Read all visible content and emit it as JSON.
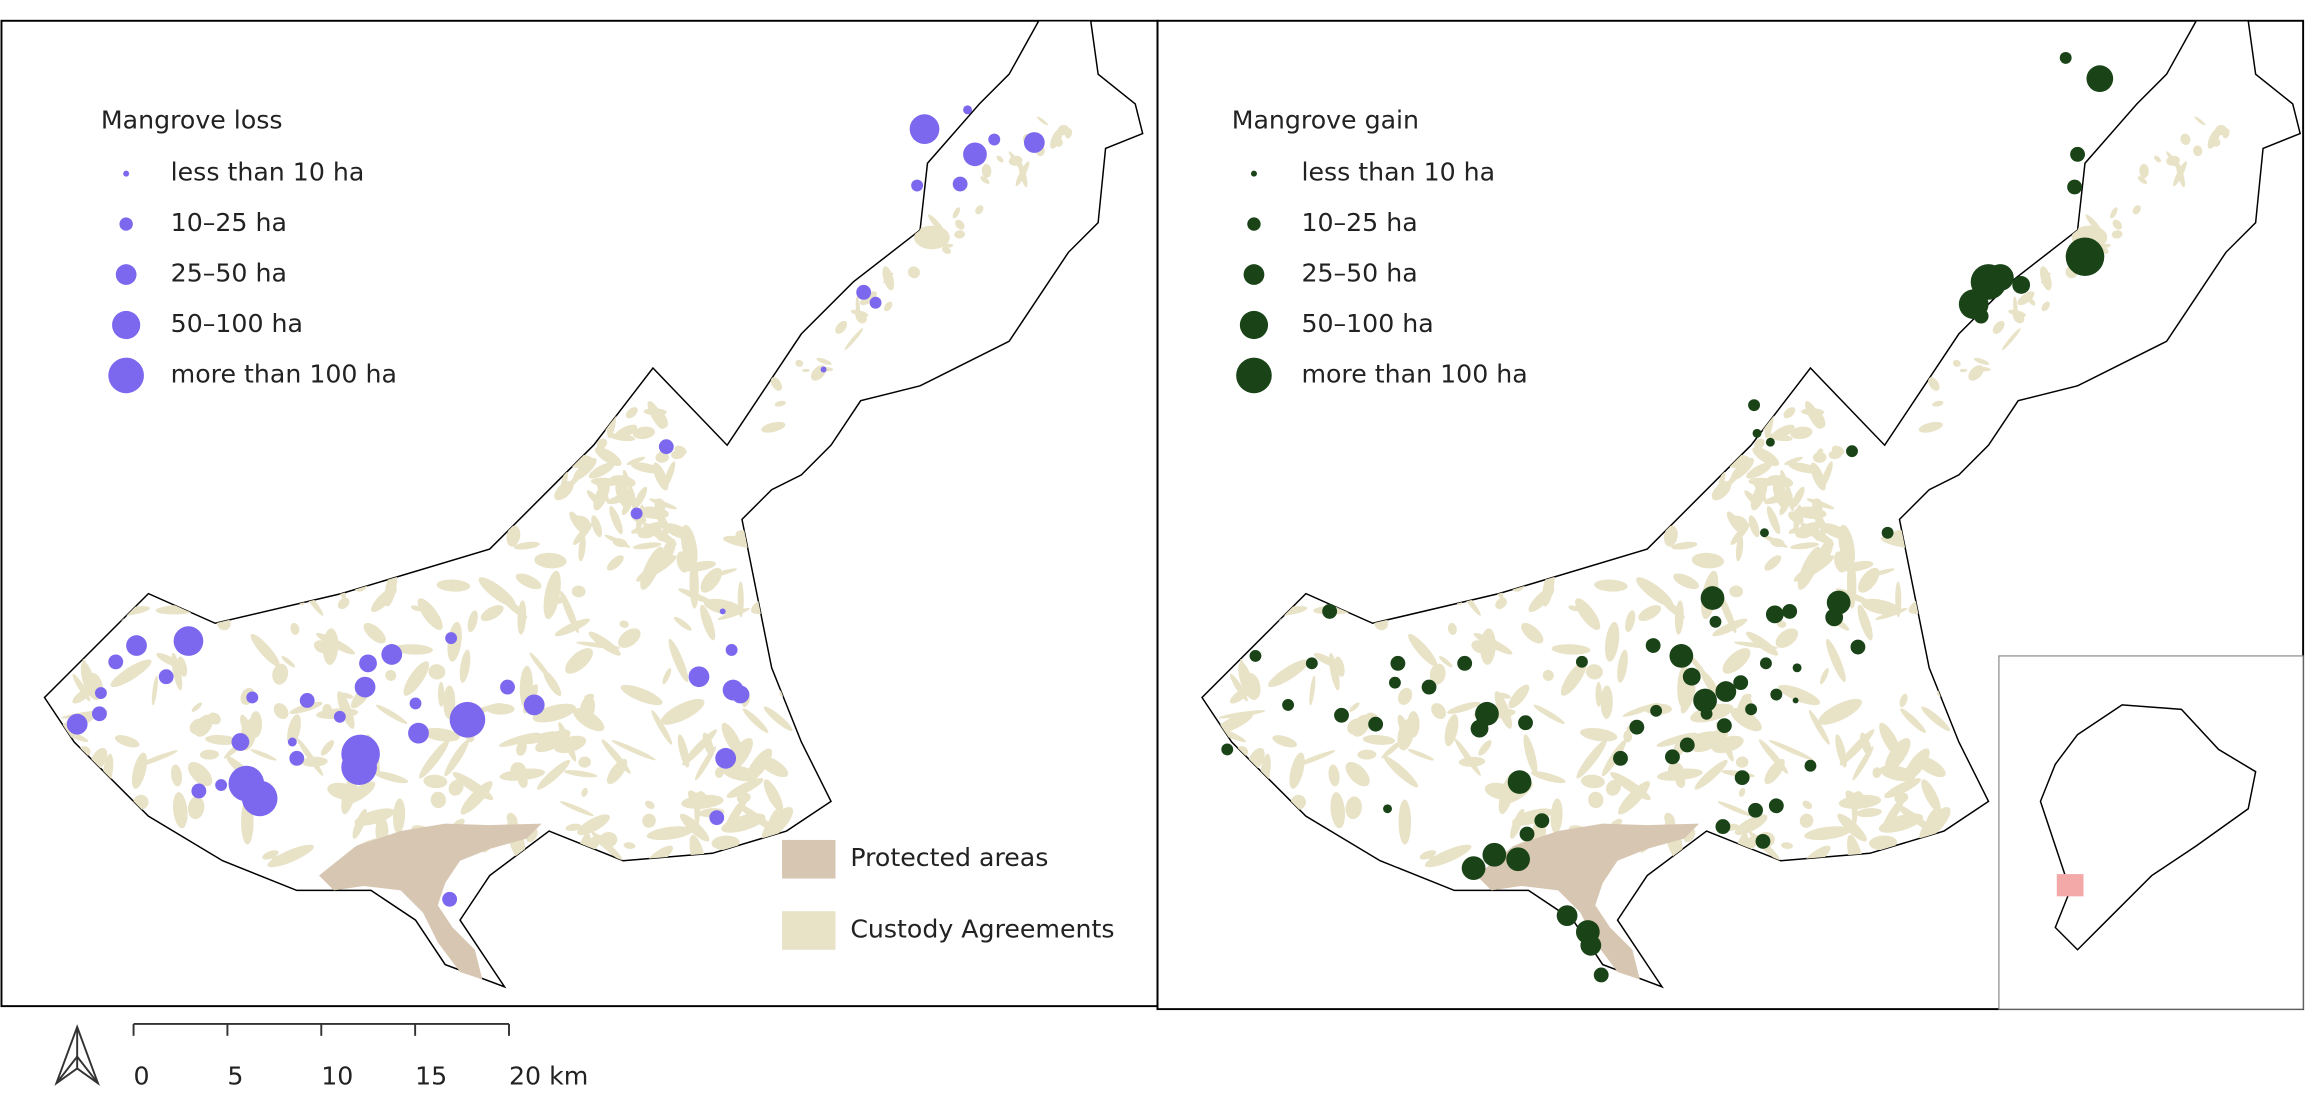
{
  "loss_panel": {
    "legend_title": "Mangrove loss",
    "legend_items": [
      "less than 10 ha",
      "10–25 ha",
      "25–50 ha",
      "50–100 ha",
      "more than 100 ha"
    ]
  },
  "gain_panel": {
    "legend_title": "Mangrove gain",
    "legend_items": [
      "less than 10 ha",
      "10–25 ha",
      "25–50 ha",
      "50–100 ha",
      "more than 100 ha"
    ]
  },
  "area_legend": [
    "Protected areas",
    "Custody Agreements"
  ],
  "scale_bar": [
    "0",
    "5",
    "10",
    "15",
    "20 km"
  ]
}
